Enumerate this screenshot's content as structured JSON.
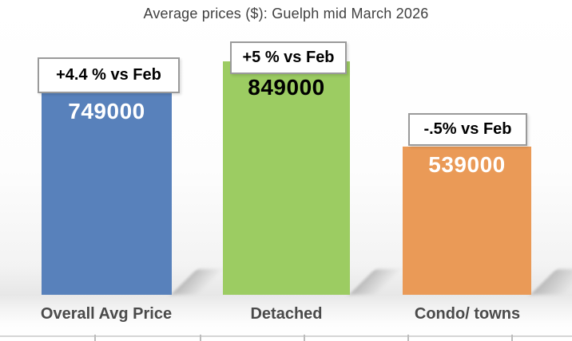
{
  "title": "Average prices ($): Guelph mid March 2026",
  "chart_data": {
    "type": "bar",
    "title": "Average prices ($): Guelph mid March 2026",
    "categories": [
      "Overall Avg Price",
      "Detached",
      "Condo/ towns"
    ],
    "values": [
      749000,
      849000,
      539000
    ],
    "value_labels": [
      "749000",
      "849000",
      "539000"
    ],
    "change_labels": [
      "+4.4 % vs Feb",
      "+5 % vs Feb",
      "-.5% vs Feb"
    ],
    "bar_colors": [
      "#5881BB",
      "#9CCC62",
      "#EA9A57"
    ],
    "value_label_colors": [
      "#FFFFFF",
      "#000000",
      "#FFFFFF"
    ],
    "ylim": [
      0,
      870000
    ],
    "grid": false,
    "legend": false,
    "colors": {
      "title_text": "#404040",
      "category_text": "#4A4A4A",
      "callout_border": "#9A9A9A",
      "callout_bg": "#FFFFFF",
      "callout_text": "#000000"
    }
  }
}
